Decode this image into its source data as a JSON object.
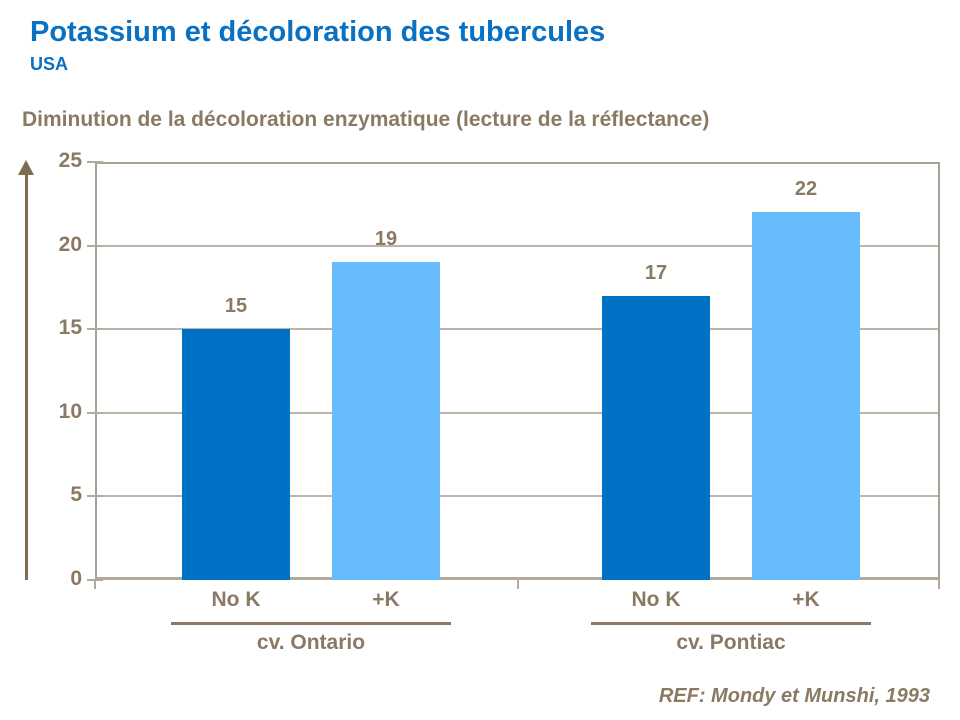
{
  "slide": {
    "title": "Potassium et décoloration des tubercules",
    "subtitle": "USA",
    "chart_heading": "Diminution de la décoloration enzymatique (lecture de la réflectance)",
    "reference": "REF: Mondy et Munshi, 1993"
  },
  "colors": {
    "title_blue": "#0a70c2",
    "brown_text": "#8a7a64",
    "dark_bar": "#0072c6",
    "light_bar": "#69bcfb",
    "gridline": "#bdb6a8",
    "plot_border": "#a8a093",
    "arrow": "#7c6c52"
  },
  "chart_data": {
    "type": "bar",
    "title": "Diminution de la décoloration enzymatique (lecture de la réflectance)",
    "ylabel": "",
    "xlabel": "",
    "ylim": [
      0,
      25
    ],
    "y_ticks": [
      0,
      5,
      10,
      15,
      20,
      25
    ],
    "grid": true,
    "value_labels": true,
    "legend": "none",
    "groups": [
      {
        "label": "cv. Ontario",
        "bars": [
          {
            "category": "No K",
            "value": 15,
            "color": "#0072c6"
          },
          {
            "category": "+K",
            "value": 19,
            "color": "#69bcfb"
          }
        ]
      },
      {
        "label": "cv. Pontiac",
        "bars": [
          {
            "category": "No K",
            "value": 17,
            "color": "#0072c6"
          },
          {
            "category": "+K",
            "value": 22,
            "color": "#69bcfb"
          }
        ]
      }
    ]
  }
}
